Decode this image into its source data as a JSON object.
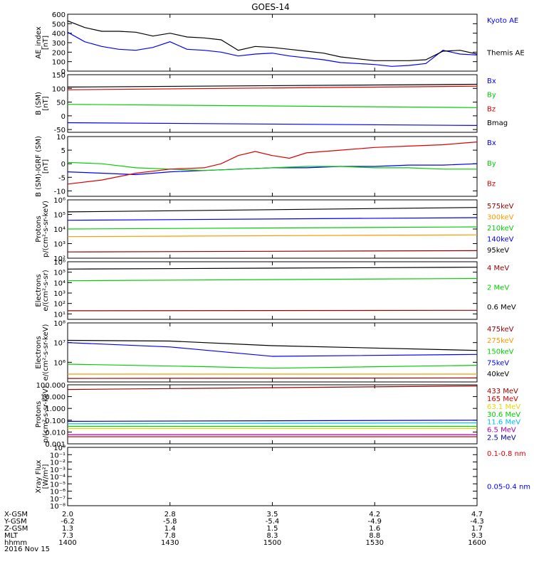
{
  "title": "GOES-14",
  "date": "2016 Nov 15",
  "orbit": {
    "labels": [
      "X-GSM",
      "Y-GSM",
      "Z-GSM",
      "MLT",
      "hhmm"
    ],
    "columns": [
      [
        "2.0",
        "-6.2",
        "1.3",
        "7.3",
        "1400"
      ],
      [
        "2.8",
        "-5.8",
        "1.4",
        "7.8",
        "1430"
      ],
      [
        "3.5",
        "-5.4",
        "1.5",
        "8.3",
        "1500"
      ],
      [
        "4.2",
        "-4.9",
        "1.6",
        "8.8",
        "1530"
      ],
      [
        "4.7",
        "-4.3",
        "1.7",
        "9.3",
        "1600"
      ]
    ]
  },
  "colors": {
    "black": "#000000",
    "blue": "#0000ff",
    "green": "#00d000",
    "red": "#dd0000",
    "orange": "#ff9900",
    "yellow": "#e6d800",
    "cyan": "#00bbff",
    "purple": "#aa00aa",
    "darkred": "#990000",
    "navy": "#0000aa"
  },
  "chart_data": [
    {
      "id": "ae",
      "type": "line",
      "ylabel": [
        "AE_index",
        "[nT]"
      ],
      "ylim": [
        0,
        600
      ],
      "yticks": [
        {
          "v": 0,
          "t": "0"
        },
        {
          "v": 100,
          "t": "100"
        },
        {
          "v": 200,
          "t": "200"
        },
        {
          "v": 300,
          "t": "300"
        },
        {
          "v": 400,
          "t": "400"
        },
        {
          "v": 500,
          "t": "500"
        },
        {
          "v": 600,
          "t": "600"
        }
      ],
      "series": [
        {
          "name": "Kyoto AE",
          "color": "blue",
          "x": [
            1400,
            1405,
            1410,
            1415,
            1420,
            1425,
            1430,
            1435,
            1440,
            1445,
            1450,
            1455,
            1500,
            1505,
            1510,
            1515,
            1520,
            1525,
            1530,
            1535,
            1540,
            1545,
            1550,
            1555,
            1600
          ],
          "y": [
            410,
            310,
            260,
            230,
            220,
            250,
            310,
            230,
            220,
            200,
            160,
            180,
            190,
            160,
            140,
            120,
            90,
            80,
            70,
            50,
            60,
            80,
            220,
            180,
            170
          ]
        },
        {
          "name": "Themis AE",
          "color": "black",
          "x": [
            1400,
            1405,
            1410,
            1415,
            1420,
            1425,
            1430,
            1435,
            1440,
            1445,
            1450,
            1455,
            1500,
            1505,
            1510,
            1515,
            1520,
            1525,
            1530,
            1535,
            1540,
            1545,
            1550,
            1555,
            1600
          ],
          "y": [
            530,
            460,
            420,
            420,
            410,
            370,
            400,
            360,
            350,
            330,
            220,
            260,
            250,
            230,
            210,
            190,
            150,
            130,
            110,
            110,
            110,
            120,
            210,
            220,
            180
          ]
        }
      ]
    },
    {
      "id": "b",
      "type": "line",
      "ylabel": [
        "B (SM)",
        "[nT]"
      ],
      "ylim": [
        -60,
        150
      ],
      "yticks": [
        {
          "v": -50,
          "t": "-50"
        },
        {
          "v": 0,
          "t": "0"
        },
        {
          "v": 50,
          "t": "50"
        },
        {
          "v": 100,
          "t": "100"
        },
        {
          "v": 150,
          "t": "150"
        }
      ],
      "series": [
        {
          "name": "Bx",
          "color": "blue",
          "x": [
            1400,
            1600
          ],
          "y": [
            -25,
            -35
          ]
        },
        {
          "name": "By",
          "color": "green",
          "x": [
            1400,
            1600
          ],
          "y": [
            42,
            30
          ]
        },
        {
          "name": "Bz",
          "color": "red",
          "x": [
            1400,
            1600
          ],
          "y": [
            95,
            108
          ]
        },
        {
          "name": "Bmag",
          "color": "black",
          "x": [
            1400,
            1600
          ],
          "y": [
            105,
            115
          ]
        }
      ]
    },
    {
      "id": "db",
      "type": "line",
      "ylabel": [
        "B (SM)-IGRF (SM)",
        "[nT]"
      ],
      "ylim": [
        -12,
        10
      ],
      "yticks": [
        {
          "v": -10,
          "t": "-10"
        },
        {
          "v": -5,
          "t": "-5"
        },
        {
          "v": 0,
          "t": "0"
        },
        {
          "v": 5,
          "t": "5"
        },
        {
          "v": 10,
          "t": "10"
        }
      ],
      "series": [
        {
          "name": "Bx",
          "color": "blue",
          "x": [
            1400,
            1410,
            1420,
            1430,
            1440,
            1450,
            1500,
            1510,
            1520,
            1530,
            1540,
            1550,
            1600
          ],
          "y": [
            -3,
            -3.5,
            -4,
            -3,
            -2.5,
            -2,
            -1.5,
            -1.5,
            -1,
            -1,
            -0.5,
            -0.5,
            0
          ]
        },
        {
          "name": "By",
          "color": "green",
          "x": [
            1400,
            1410,
            1420,
            1430,
            1440,
            1450,
            1500,
            1510,
            1520,
            1530,
            1540,
            1550,
            1600
          ],
          "y": [
            0.5,
            0,
            -1.5,
            -2,
            -2.5,
            -2,
            -1.5,
            -1,
            -1,
            -1.5,
            -1.5,
            -2,
            -2
          ]
        },
        {
          "name": "Bz",
          "color": "red",
          "x": [
            1400,
            1410,
            1420,
            1430,
            1440,
            1445,
            1450,
            1455,
            1500,
            1505,
            1510,
            1520,
            1530,
            1540,
            1550,
            1555,
            1600
          ],
          "y": [
            -7.5,
            -6,
            -3.5,
            -2,
            -1.5,
            0,
            3,
            4.5,
            3,
            2,
            4,
            5,
            6,
            6.5,
            7,
            7.5,
            8
          ]
        }
      ]
    },
    {
      "id": "protons_kev",
      "type": "line",
      "ylabel": [
        "Protons",
        "p/(cm²-s-sr-keV)"
      ],
      "log": true,
      "ylim": [
        100,
        1000000
      ],
      "yticks": [
        {
          "v": 100,
          "t": "10²"
        },
        {
          "v": 1000,
          "t": "10³"
        },
        {
          "v": 10000,
          "t": "10⁴"
        },
        {
          "v": 100000,
          "t": "10⁵"
        },
        {
          "v": 1000000,
          "t": "10⁶"
        }
      ],
      "series": [
        {
          "name": "575keV",
          "color": "darkred",
          "x": [
            1400,
            1600
          ],
          "y": [
            270,
            330
          ]
        },
        {
          "name": "300keV",
          "color": "orange",
          "x": [
            1400,
            1600
          ],
          "y": [
            3000,
            4000
          ]
        },
        {
          "name": "210keV",
          "color": "green",
          "x": [
            1400,
            1600
          ],
          "y": [
            10000,
            14000
          ]
        },
        {
          "name": "140keV",
          "color": "blue",
          "x": [
            1400,
            1600
          ],
          "y": [
            40000,
            60000
          ]
        },
        {
          "name": "95keV",
          "color": "black",
          "x": [
            1400,
            1600
          ],
          "y": [
            150000,
            300000
          ]
        }
      ]
    },
    {
      "id": "electrons_mev",
      "type": "line",
      "ylabel": [
        "Electrons",
        "e/(cm²-s-sr)"
      ],
      "log": true,
      "ylim": [
        3,
        1000000
      ],
      "yticks": [
        {
          "v": 10,
          "t": "10¹"
        },
        {
          "v": 100,
          "t": "10²"
        },
        {
          "v": 1000,
          "t": "10³"
        },
        {
          "v": 10000,
          "t": "10⁴"
        },
        {
          "v": 100000,
          "t": "10⁵"
        },
        {
          "v": 1000000,
          "t": "10⁶"
        }
      ],
      "series": [
        {
          "name": "4 MeV",
          "color": "darkred",
          "x": [
            1400,
            1600
          ],
          "y": [
            20,
            22
          ]
        },
        {
          "name": "2 MeV",
          "color": "green",
          "x": [
            1400,
            1600
          ],
          "y": [
            15000,
            25000
          ]
        },
        {
          "name": "0.6 MeV",
          "color": "black",
          "x": [
            1400,
            1600
          ],
          "y": [
            200000,
            300000
          ]
        }
      ]
    },
    {
      "id": "electrons_kev",
      "type": "line",
      "ylabel": [
        "Electrons",
        "e/(cm²-s-sr-keV)"
      ],
      "log": true,
      "ylim": [
        100000,
        100000000
      ],
      "yticks": [
        {
          "v": 1000000,
          "t": "10⁶"
        },
        {
          "v": 10000000,
          "t": "10⁷"
        },
        {
          "v": 100000000,
          "t": "10⁸"
        }
      ],
      "series": [
        {
          "name": "475keV",
          "color": "darkred",
          "x": [
            1400,
            1600
          ],
          "y": [
            150000,
            160000
          ]
        },
        {
          "name": "275keV",
          "color": "orange",
          "x": [
            1400,
            1600
          ],
          "y": [
            250000,
            250000
          ]
        },
        {
          "name": "150keV",
          "color": "green",
          "x": [
            1400,
            1440,
            1500,
            1600
          ],
          "y": [
            800000,
            600000,
            500000,
            700000
          ]
        },
        {
          "name": "75keV",
          "color": "blue",
          "x": [
            1400,
            1430,
            1500,
            1600
          ],
          "y": [
            10000000,
            6000000,
            2000000,
            2500000
          ]
        },
        {
          "name": "40keV",
          "color": "black",
          "x": [
            1400,
            1430,
            1500,
            1600
          ],
          "y": [
            13000000,
            12000000,
            7000000,
            4000000
          ]
        }
      ]
    },
    {
      "id": "protons_mev",
      "type": "line",
      "ylabel": [
        "Protons",
        "p/(cm²-s-sr-keV)"
      ],
      "log": true,
      "ylim": [
        0.001,
        100
      ],
      "yticks": [
        {
          "v": 0.001,
          "t": "0.001"
        },
        {
          "v": 0.01,
          "t": "0.010"
        },
        {
          "v": 0.1,
          "t": "0.100"
        },
        {
          "v": 1,
          "t": "1.000"
        },
        {
          "v": 10,
          "t": "10.000"
        },
        {
          "v": 100,
          "t": "100.000"
        }
      ],
      "series": [
        {
          "name": "433 MeV",
          "color": "darkred",
          "x": [
            1400,
            1600
          ],
          "y": [
            40,
            80
          ]
        },
        {
          "name": "165 MeV",
          "color": "red",
          "x": [
            1400,
            1600
          ],
          "y": [
            0.004,
            0.004
          ]
        },
        {
          "name": "63.1 MeV",
          "color": "yellow",
          "x": [
            1400,
            1600
          ],
          "y": [
            0.02,
            0.02
          ]
        },
        {
          "name": "30.6 MeV",
          "color": "green",
          "x": [
            1400,
            1600
          ],
          "y": [
            0.03,
            0.03
          ]
        },
        {
          "name": "11.6 MeV",
          "color": "cyan",
          "x": [
            1400,
            1600
          ],
          "y": [
            0.05,
            0.06
          ]
        },
        {
          "name": "6.5 MeV",
          "color": "purple",
          "x": [
            1400,
            1600
          ],
          "y": [
            0.006,
            0.006
          ]
        },
        {
          "name": "2.5 MeV",
          "color": "navy",
          "x": [
            1400,
            1600
          ],
          "y": [
            0.08,
            0.1
          ]
        }
      ]
    },
    {
      "id": "xray",
      "type": "line",
      "ylabel": [
        "Xray Flux",
        "[W/m²]"
      ],
      "log": true,
      "ylim": [
        1e-08,
        1
      ],
      "yticks": [
        {
          "v": 1,
          "t": "10⁰"
        },
        {
          "v": 0.1,
          "t": "10⁻¹"
        },
        {
          "v": 0.01,
          "t": "10⁻²"
        },
        {
          "v": 0.001,
          "t": "10⁻³"
        },
        {
          "v": 0.0001,
          "t": "10⁻⁴"
        },
        {
          "v": 1e-05,
          "t": "10⁻⁵"
        },
        {
          "v": 1e-06,
          "t": "10⁻⁶"
        },
        {
          "v": 1e-07,
          "t": "10⁻⁷"
        },
        {
          "v": 1e-08,
          "t": "10⁻⁸"
        }
      ],
      "series": [
        {
          "name": "0.1-0.8 nm",
          "color": "red",
          "x": [],
          "y": []
        },
        {
          "name": "0.05-0.4 nm",
          "color": "blue",
          "x": [],
          "y": []
        }
      ]
    }
  ]
}
